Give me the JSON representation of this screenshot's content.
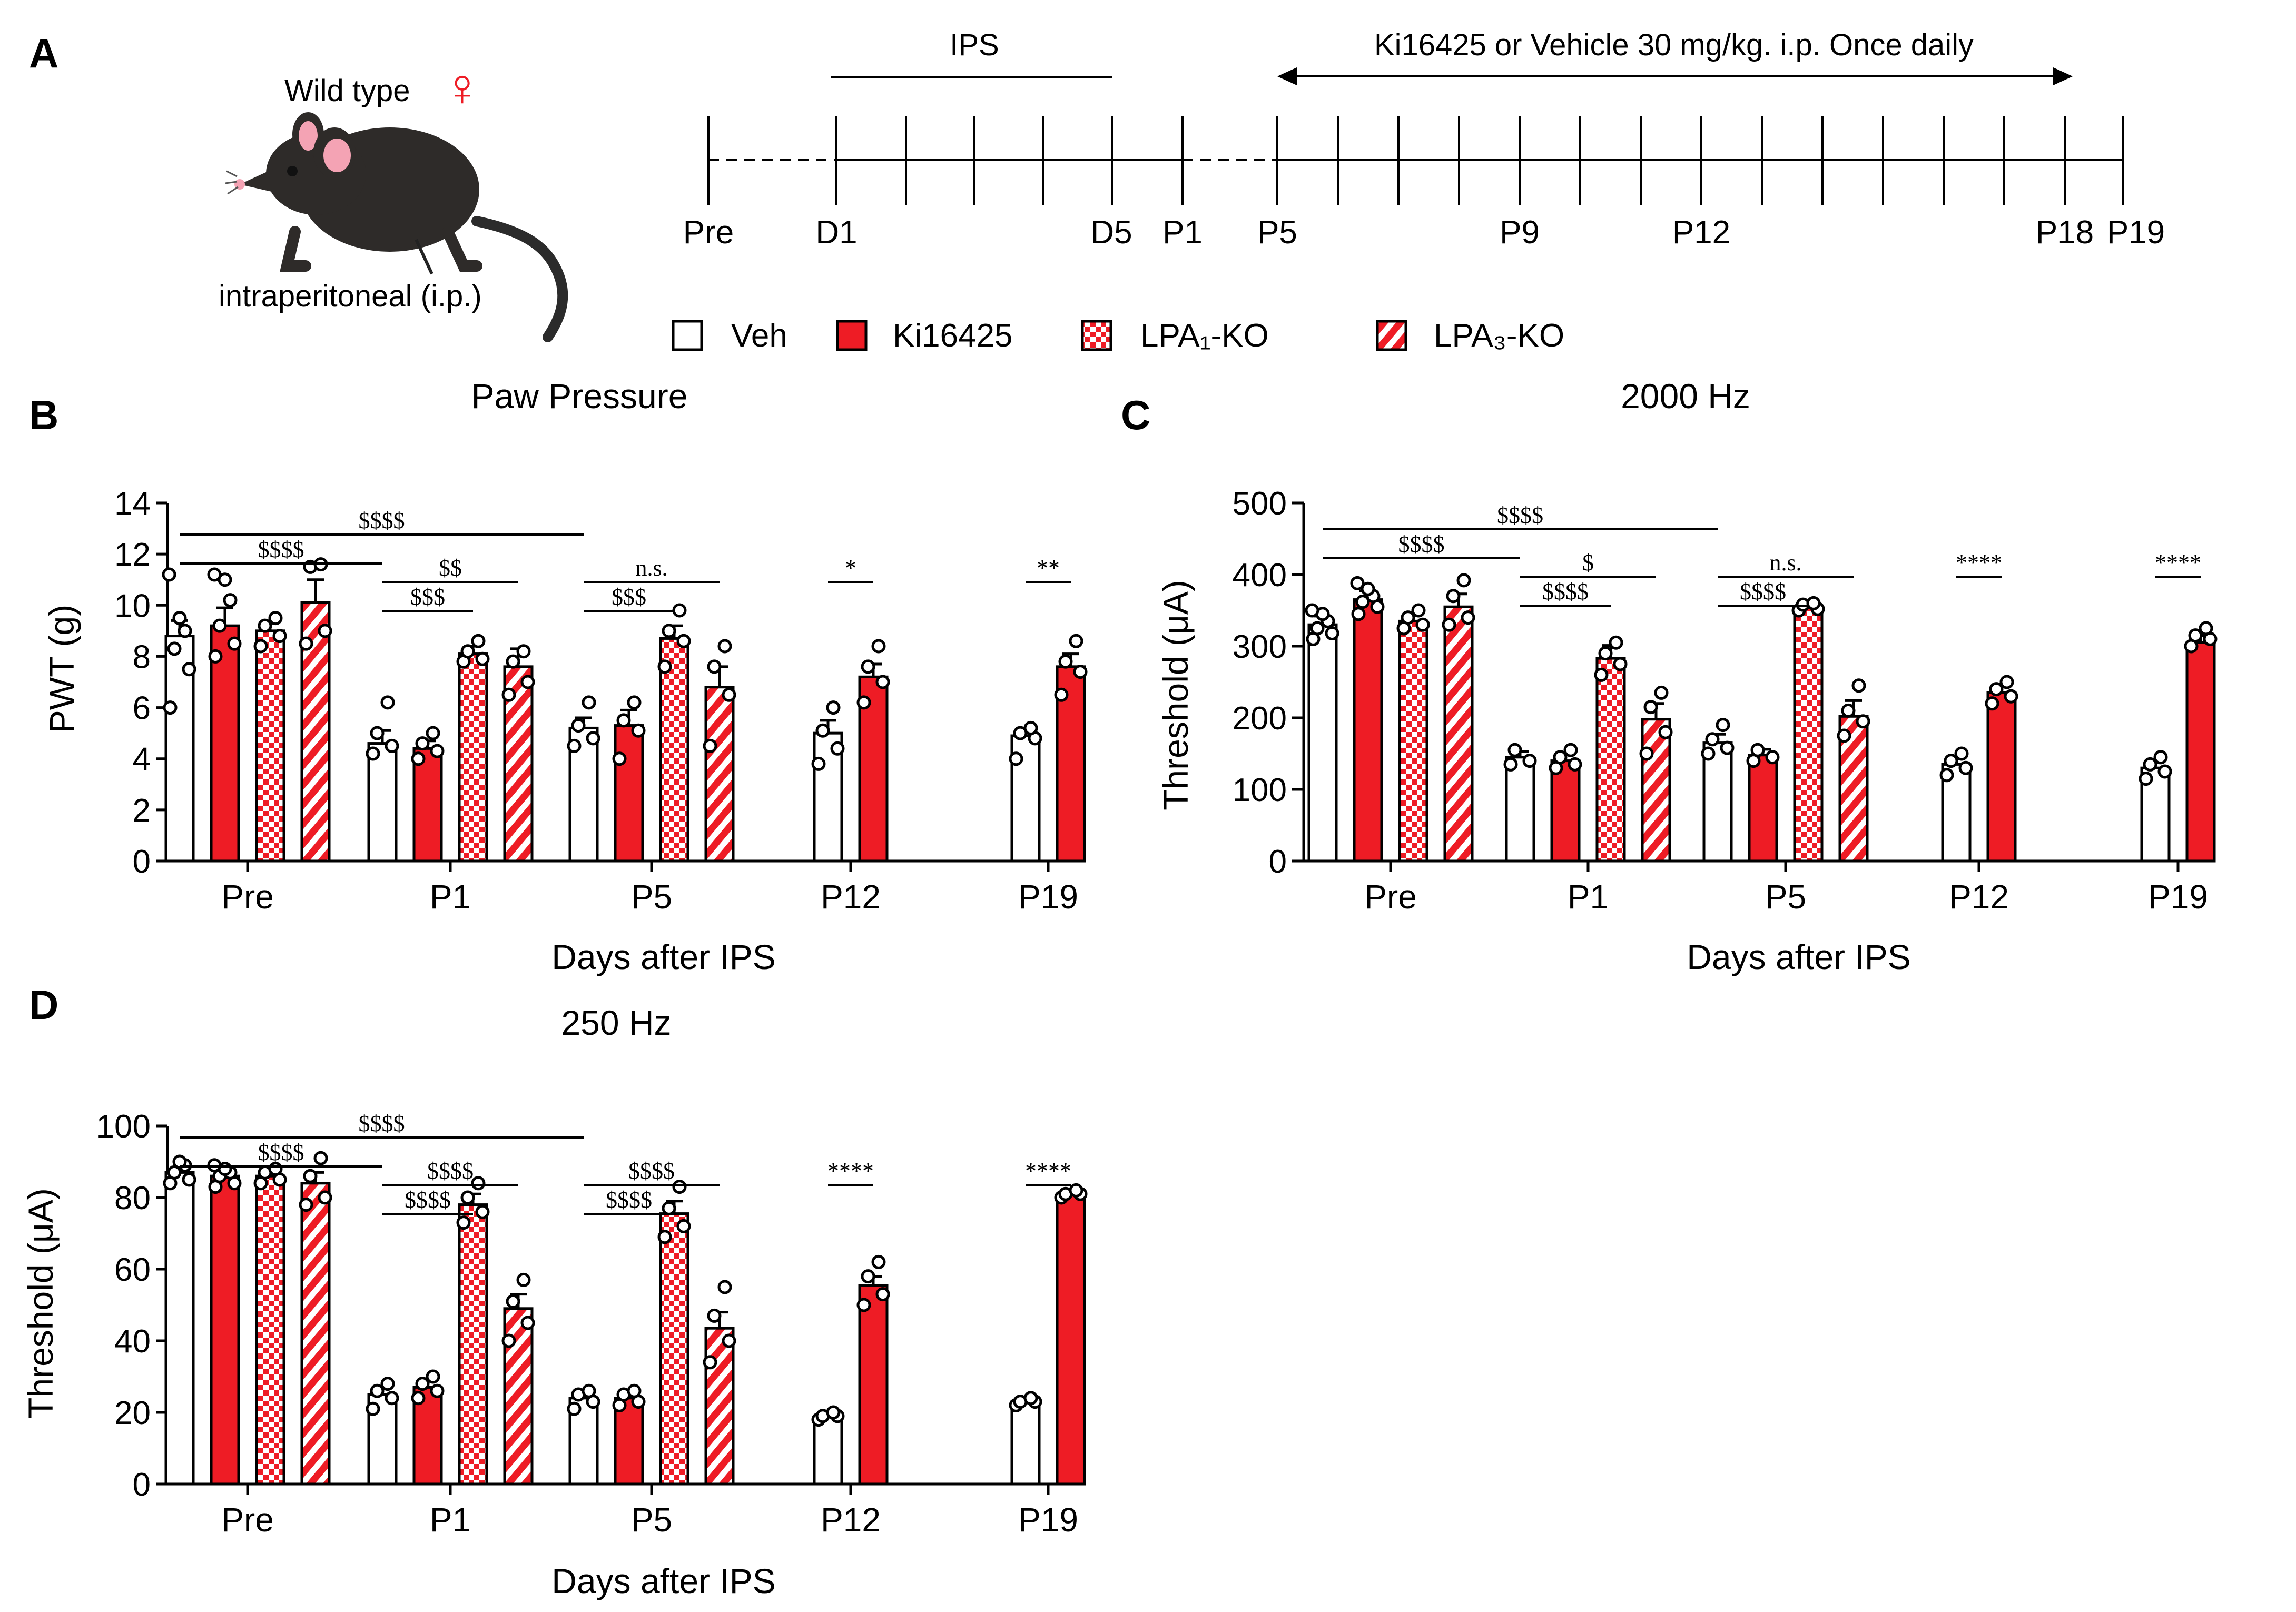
{
  "colors": {
    "red": "#ee1c25",
    "black": "#000000",
    "white": "#ffffff"
  },
  "panelA": {
    "label": "A",
    "mouse_title": "Wild type",
    "female_symbol": "♀",
    "route": "intraperitoneal (i.p.)",
    "mouse_icon": "mouse-icon",
    "ips_label": "IPS",
    "treatment_label": "Ki16425 or Vehicle  30 mg/kg. i.p. Once daily",
    "days": [
      "Pre",
      "D1",
      "D5",
      "P1",
      "P5",
      "P9",
      "P12",
      "P18",
      "P19"
    ]
  },
  "legend": [
    {
      "name": "Veh",
      "fill": "white"
    },
    {
      "name": "Ki16425",
      "fill": "red"
    },
    {
      "name": "LPA₁-KO",
      "fill": "checker"
    },
    {
      "name": "LPA₃-KO",
      "fill": "stripe"
    }
  ],
  "chart_data": [
    {
      "panel": "B",
      "type": "bar",
      "title": "Paw Pressure",
      "xlabel": "Days after IPS",
      "ylabel": "PWT (g)",
      "ylim": [
        0,
        14
      ],
      "yticks": [
        0,
        2,
        4,
        6,
        8,
        10,
        12,
        14
      ],
      "categories": [
        "Pre",
        "P1",
        "P5",
        "P12",
        "P19"
      ],
      "series": [
        {
          "name": "Veh",
          "values": [
            8.8,
            4.6,
            5.2,
            5.0,
            4.9
          ],
          "errors": [
            0.6,
            0.5,
            0.4,
            0.5,
            0.3
          ]
        },
        {
          "name": "Ki16425",
          "values": [
            9.2,
            4.4,
            5.3,
            7.2,
            7.6
          ],
          "errors": [
            0.7,
            0.3,
            0.6,
            0.5,
            0.5
          ]
        },
        {
          "name": "LPA₁-KO",
          "values": [
            9.0,
            8.1,
            8.7,
            null,
            null
          ],
          "errors": [
            0.3,
            0.3,
            0.5,
            null,
            null
          ]
        },
        {
          "name": "LPA₃-KO",
          "values": [
            10.1,
            7.6,
            6.8,
            null,
            null
          ],
          "errors": [
            0.9,
            0.7,
            0.8,
            null,
            null
          ]
        }
      ],
      "points": [
        [
          [
            6.0,
            7.5,
            8.3,
            9.0,
            9.5,
            11.2
          ],
          [
            4.2,
            4.5,
            5.0,
            6.2
          ],
          [
            4.5,
            4.8,
            5.3,
            6.2
          ],
          [
            3.8,
            4.4,
            5.1,
            6.0
          ],
          [
            4.0,
            4.8,
            5.0,
            5.2
          ]
        ],
        [
          [
            8.0,
            8.5,
            9.2,
            10.2,
            11.0,
            11.2
          ],
          [
            4.0,
            4.3,
            4.6,
            5.0
          ],
          [
            4.0,
            5.1,
            5.5,
            6.2
          ],
          [
            6.2,
            7.0,
            7.6,
            8.4
          ],
          [
            6.5,
            7.4,
            7.8,
            8.6
          ]
        ],
        [
          [
            8.4,
            8.8,
            9.2,
            9.5
          ],
          [
            7.8,
            7.9,
            8.2,
            8.6
          ],
          [
            7.6,
            8.6,
            9.0,
            9.8
          ],
          null,
          null
        ],
        [
          [
            8.5,
            9.0,
            11.5,
            11.6
          ],
          [
            6.5,
            7.0,
            7.8,
            8.2
          ],
          [
            4.5,
            6.5,
            7.6,
            8.4
          ],
          null,
          null
        ]
      ],
      "brackets": [
        {
          "from": [
            0,
            0
          ],
          "to": [
            2,
            0
          ],
          "text": "$$$$"
        },
        {
          "from": [
            0,
            0
          ],
          "to": [
            1,
            0
          ],
          "text": "$$$$"
        },
        {
          "from": [
            1,
            0
          ],
          "to": [
            1,
            3
          ],
          "text": "$$"
        },
        {
          "from": [
            1,
            0
          ],
          "to": [
            1,
            2
          ],
          "text": "$$$"
        },
        {
          "from": [
            2,
            0
          ],
          "to": [
            2,
            3
          ],
          "text": "n.s."
        },
        {
          "from": [
            2,
            0
          ],
          "to": [
            2,
            2
          ],
          "text": "$$$"
        },
        {
          "from": [
            3,
            0
          ],
          "to": [
            3,
            1
          ],
          "text": "*"
        },
        {
          "from": [
            4,
            0
          ],
          "to": [
            4,
            1
          ],
          "text": "**"
        }
      ]
    },
    {
      "panel": "C",
      "type": "bar",
      "title": "2000 Hz",
      "xlabel": "Days after IPS",
      "ylabel": "Threshold (μA)",
      "ylim": [
        0,
        500
      ],
      "yticks": [
        0,
        100,
        200,
        300,
        400,
        500
      ],
      "categories": [
        "Pre",
        "P1",
        "P5",
        "P12",
        "P19"
      ],
      "series": [
        {
          "name": "Veh",
          "values": [
            330,
            145,
            165,
            135,
            130
          ],
          "errors": [
            12,
            8,
            12,
            10,
            9
          ]
        },
        {
          "name": "Ki16425",
          "values": [
            365,
            140,
            148,
            235,
            305
          ],
          "errors": [
            12,
            10,
            8,
            8,
            10
          ]
        },
        {
          "name": "LPA₁-KO",
          "values": [
            335,
            283,
            355,
            null,
            null
          ],
          "errors": [
            8,
            18,
            5,
            null,
            null
          ]
        },
        {
          "name": "LPA₃-KO",
          "values": [
            355,
            198,
            202,
            null,
            null
          ],
          "errors": [
            18,
            22,
            22,
            null,
            null
          ]
        }
      ],
      "points": [
        [
          [
            310,
            318,
            325,
            335,
            345,
            350
          ],
          [
            135,
            140,
            155
          ],
          [
            150,
            158,
            170,
            190
          ],
          [
            120,
            130,
            140,
            150
          ],
          [
            115,
            125,
            135,
            145
          ]
        ],
        [
          [
            345,
            355,
            362,
            370,
            380,
            388
          ],
          [
            130,
            135,
            145,
            155
          ],
          [
            140,
            145,
            155
          ],
          [
            220,
            230,
            240,
            250
          ],
          [
            300,
            310,
            315,
            325
          ]
        ],
        [
          [
            325,
            330,
            340,
            350
          ],
          [
            260,
            275,
            290,
            305
          ],
          [
            350,
            352,
            358,
            360
          ],
          null,
          null
        ],
        [
          [
            330,
            340,
            370,
            392
          ],
          [
            150,
            180,
            215,
            235
          ],
          [
            175,
            195,
            210,
            245
          ],
          null,
          null
        ]
      ],
      "brackets": [
        {
          "from": [
            0,
            0
          ],
          "to": [
            2,
            0
          ],
          "text": "$$$$"
        },
        {
          "from": [
            0,
            0
          ],
          "to": [
            1,
            0
          ],
          "text": "$$$$"
        },
        {
          "from": [
            1,
            0
          ],
          "to": [
            1,
            3
          ],
          "text": "$"
        },
        {
          "from": [
            1,
            0
          ],
          "to": [
            1,
            2
          ],
          "text": "$$$$"
        },
        {
          "from": [
            2,
            0
          ],
          "to": [
            2,
            3
          ],
          "text": "n.s."
        },
        {
          "from": [
            2,
            0
          ],
          "to": [
            2,
            2
          ],
          "text": "$$$$"
        },
        {
          "from": [
            3,
            0
          ],
          "to": [
            3,
            1
          ],
          "text": "****"
        },
        {
          "from": [
            4,
            0
          ],
          "to": [
            4,
            1
          ],
          "text": "****"
        }
      ]
    },
    {
      "panel": "D",
      "type": "bar",
      "title": "250 Hz",
      "xlabel": "Days after IPS",
      "ylabel": "Threshold (μA)",
      "ylim": [
        0,
        100
      ],
      "yticks": [
        0,
        20,
        40,
        60,
        80,
        100
      ],
      "categories": [
        "Pre",
        "P1",
        "P5",
        "P12",
        "P19"
      ],
      "series": [
        {
          "name": "Veh",
          "values": [
            87,
            25,
            24,
            19,
            23
          ],
          "errors": [
            1.5,
            2,
            1.2,
            0.8,
            0.5
          ]
        },
        {
          "name": "Ki16425",
          "values": [
            86,
            27,
            24,
            55.5,
            81
          ],
          "errors": [
            1.5,
            2,
            1.2,
            2.5,
            0.5
          ]
        },
        {
          "name": "LPA₁-KO",
          "values": [
            86,
            78,
            75.5,
            null,
            null
          ],
          "errors": [
            1.5,
            3,
            3.5,
            null,
            null
          ]
        },
        {
          "name": "LPA₃-KO",
          "values": [
            84,
            49,
            43.5,
            null,
            null
          ],
          "errors": [
            3,
            4,
            4.5,
            null,
            null
          ]
        }
      ],
      "points": [
        [
          [
            84,
            85,
            87,
            89,
            90
          ],
          [
            21,
            24,
            26,
            28
          ],
          [
            21,
            23,
            25,
            26
          ],
          [
            18,
            19,
            19,
            20
          ],
          [
            22,
            23,
            23,
            24
          ]
        ],
        [
          [
            83,
            84,
            86,
            87,
            88,
            89
          ],
          [
            24,
            26,
            28,
            30
          ],
          [
            22,
            23,
            25,
            26
          ],
          [
            50,
            53,
            58,
            62
          ],
          [
            80,
            81,
            81,
            82
          ]
        ],
        [
          [
            84,
            85,
            87,
            88
          ],
          [
            73,
            76,
            80,
            84
          ],
          [
            69,
            72,
            77,
            83
          ],
          null,
          null
        ],
        [
          [
            78,
            80,
            86,
            91
          ],
          [
            40,
            45,
            51,
            57
          ],
          [
            34,
            40,
            47,
            55
          ],
          null,
          null
        ]
      ],
      "brackets": [
        {
          "from": [
            0,
            0
          ],
          "to": [
            2,
            0
          ],
          "text": "$$$$"
        },
        {
          "from": [
            0,
            0
          ],
          "to": [
            1,
            0
          ],
          "text": "$$$$"
        },
        {
          "from": [
            1,
            0
          ],
          "to": [
            1,
            3
          ],
          "text": "$$$$"
        },
        {
          "from": [
            1,
            0
          ],
          "to": [
            1,
            2
          ],
          "text": "$$$$"
        },
        {
          "from": [
            2,
            0
          ],
          "to": [
            2,
            3
          ],
          "text": "$$$$"
        },
        {
          "from": [
            2,
            0
          ],
          "to": [
            2,
            2
          ],
          "text": "$$$$"
        },
        {
          "from": [
            3,
            0
          ],
          "to": [
            3,
            1
          ],
          "text": "****"
        },
        {
          "from": [
            4,
            0
          ],
          "to": [
            4,
            1
          ],
          "text": "****"
        }
      ]
    }
  ]
}
